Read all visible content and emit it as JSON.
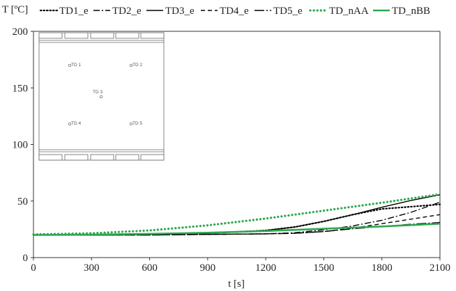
{
  "chart_data": {
    "type": "line",
    "ylabel": "T [ºC]",
    "xlabel": "t [s]",
    "xlim": [
      0,
      2100
    ],
    "ylim": [
      0,
      200
    ],
    "xticks": [
      0,
      300,
      600,
      900,
      1200,
      1500,
      1800,
      2100
    ],
    "yticks": [
      0,
      50,
      100,
      150,
      200
    ],
    "grid": false,
    "legend_position": "top",
    "series": [
      {
        "name": "TD1_e",
        "style": "dotted",
        "color": "#000000",
        "x": [
          0,
          300,
          600,
          900,
          1200,
          1350,
          1500,
          1650,
          1800,
          1950,
          2100
        ],
        "y": [
          20,
          20,
          20.5,
          21.5,
          24,
          27,
          32,
          38,
          43,
          45,
          47
        ]
      },
      {
        "name": "TD2_e",
        "style": "dashdot",
        "color": "#000000",
        "x": [
          0,
          300,
          600,
          900,
          1200,
          1350,
          1500,
          1650,
          1800,
          1950,
          2100
        ],
        "y": [
          20,
          20,
          20,
          20.5,
          21,
          22,
          24.5,
          28,
          33,
          40,
          49
        ]
      },
      {
        "name": "TD3_e",
        "style": "solid",
        "color": "#000000",
        "x": [
          0,
          300,
          600,
          900,
          1050,
          1200,
          1350,
          1500,
          1650,
          1800,
          1950,
          2100
        ],
        "y": [
          20,
          20,
          20.5,
          21.5,
          22.5,
          24,
          27,
          32,
          38,
          44.5,
          50.5,
          55.5
        ]
      },
      {
        "name": "TD4_e",
        "style": "dashed",
        "color": "#000000",
        "x": [
          0,
          300,
          600,
          900,
          1200,
          1350,
          1500,
          1650,
          1800,
          1950,
          2100
        ],
        "y": [
          20,
          20,
          20,
          20.5,
          21,
          21.5,
          23,
          26,
          30,
          34,
          38
        ]
      },
      {
        "name": "TD5_e",
        "style": "longdashdot",
        "color": "#000000",
        "x": [
          0,
          300,
          600,
          900,
          1200,
          1350,
          1500,
          1650,
          1800,
          1950,
          2100
        ],
        "y": [
          20,
          20,
          20,
          20.5,
          21,
          21.5,
          23,
          25.5,
          27.5,
          29.5,
          31
        ]
      },
      {
        "name": "TD_nAA",
        "style": "dotted-thick",
        "color": "#2ea84f",
        "x": [
          0,
          300,
          600,
          900,
          1200,
          1500,
          1800,
          2100
        ],
        "y": [
          20.5,
          21.5,
          24,
          28.5,
          34.5,
          41.5,
          48.5,
          56
        ]
      },
      {
        "name": "TD_nBB",
        "style": "solid-thick",
        "color": "#2ea84f",
        "x": [
          0,
          300,
          600,
          900,
          1200,
          1500,
          1800,
          2100
        ],
        "y": [
          20,
          20.3,
          21,
          22,
          23.5,
          25.5,
          27.5,
          30
        ]
      }
    ],
    "inset": {
      "labels": [
        "TD 1",
        "TD 2",
        "TD 3",
        "TD 4",
        "TD 5"
      ]
    }
  }
}
